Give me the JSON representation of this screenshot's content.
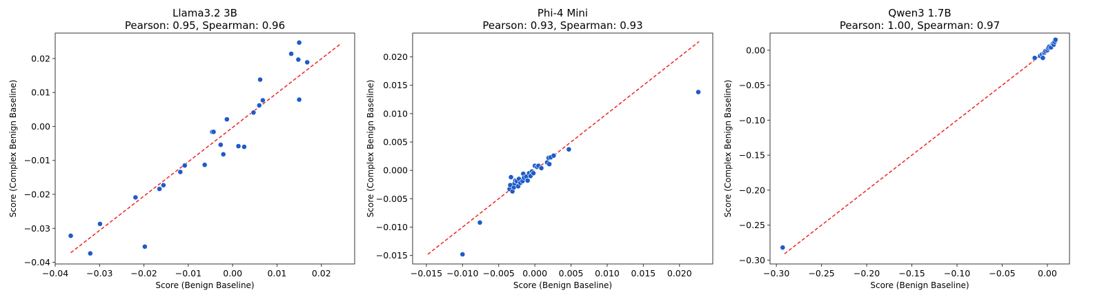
{
  "chart_data": [
    {
      "type": "scatter",
      "title": "Llama3.2 3B",
      "subtitle": "Pearson: 0.95, Spearman: 0.96",
      "xlabel": "Score (Benign Baseline)",
      "ylabel": "Score (Complex Benign Baseline)",
      "xlim": [
        -0.04,
        0.0275
      ],
      "ylim": [
        -0.0405,
        0.0275
      ],
      "xticks": [
        -0.04,
        -0.03,
        -0.02,
        -0.01,
        0.0,
        0.01,
        0.02
      ],
      "xtick_labels": [
        "−0.04",
        "−0.03",
        "−0.02",
        "−0.01",
        "0.00",
        "0.01",
        "0.02"
      ],
      "yticks": [
        -0.04,
        -0.03,
        -0.02,
        -0.01,
        0.0,
        0.01,
        0.02
      ],
      "ytick_labels": [
        "−0.04",
        "−0.03",
        "−0.02",
        "−0.01",
        "0.00",
        "0.01",
        "0.02"
      ],
      "grid": false,
      "point_color": "#1f5bc8",
      "line_color": "#ee2222",
      "reference_line": [
        [
          -0.0365,
          -0.0372
        ],
        [
          0.0245,
          0.0245
        ]
      ],
      "points": [
        [
          -0.0365,
          -0.0322
        ],
        [
          -0.0321,
          -0.0374
        ],
        [
          -0.0299,
          -0.0287
        ],
        [
          -0.0219,
          -0.0209
        ],
        [
          -0.0198,
          -0.0354
        ],
        [
          -0.0165,
          -0.0184
        ],
        [
          -0.0156,
          -0.0173
        ],
        [
          -0.0118,
          -0.0134
        ],
        [
          -0.0108,
          -0.0115
        ],
        [
          -0.0063,
          -0.0113
        ],
        [
          -0.0046,
          -0.0016
        ],
        [
          -0.0043,
          -0.0016
        ],
        [
          -0.0027,
          -0.0054
        ],
        [
          -0.0021,
          -0.0082
        ],
        [
          -0.0013,
          0.0021
        ],
        [
          0.0013,
          -0.0058
        ],
        [
          0.0026,
          -0.006
        ],
        [
          0.0047,
          0.0041
        ],
        [
          0.006,
          0.0062
        ],
        [
          0.0062,
          0.0138
        ],
        [
          0.0068,
          0.0077
        ],
        [
          0.0132,
          0.0214
        ],
        [
          0.0148,
          0.0197
        ],
        [
          0.015,
          0.0247
        ],
        [
          0.015,
          0.0079
        ],
        [
          0.0168,
          0.0189
        ]
      ]
    },
    {
      "type": "scatter",
      "title": "Phi-4 Mini",
      "subtitle": "Pearson: 0.93, Spearman: 0.93",
      "xlabel": "Score (Benign Baseline)",
      "ylabel": "Score (Complex Benign Baseline)",
      "xlim": [
        -0.0169,
        0.0246
      ],
      "ylim": [
        -0.0165,
        0.0242
      ],
      "xticks": [
        -0.015,
        -0.01,
        -0.005,
        0.0,
        0.005,
        0.01,
        0.015,
        0.02
      ],
      "xtick_labels": [
        "−0.015",
        "−0.010",
        "−0.005",
        "0.000",
        "0.005",
        "0.010",
        "0.015",
        "0.020"
      ],
      "yticks": [
        -0.015,
        -0.01,
        -0.005,
        0.0,
        0.005,
        0.01,
        0.015,
        0.02
      ],
      "ytick_labels": [
        "−0.015",
        "−0.010",
        "−0.005",
        "0.000",
        "0.005",
        "0.010",
        "0.015",
        "0.020"
      ],
      "grid": false,
      "point_color": "#1f5bc8",
      "line_color": "#ee2222",
      "reference_line": [
        [
          -0.0148,
          -0.0148
        ],
        [
          0.0227,
          0.0227
        ]
      ],
      "points": [
        [
          -0.01,
          -0.0148
        ],
        [
          -0.0076,
          -0.0092
        ],
        [
          -0.0035,
          -0.0033
        ],
        [
          -0.0034,
          -0.0026
        ],
        [
          -0.0033,
          -0.0012
        ],
        [
          -0.0031,
          -0.0037
        ],
        [
          -0.0029,
          -0.003
        ],
        [
          -0.0028,
          -0.0023
        ],
        [
          -0.0027,
          -0.0018
        ],
        [
          -0.0025,
          -0.0019
        ],
        [
          -0.0023,
          -0.0028
        ],
        [
          -0.0022,
          -0.0015
        ],
        [
          -0.002,
          -0.0022
        ],
        [
          -0.0017,
          -0.0019
        ],
        [
          -0.0016,
          -0.0006
        ],
        [
          -0.0015,
          -0.0013
        ],
        [
          -0.0012,
          -0.0011
        ],
        [
          -0.001,
          -0.0018
        ],
        [
          -0.0008,
          -0.0005
        ],
        [
          -0.0006,
          -0.001
        ],
        [
          -0.0004,
          -0.0002
        ],
        [
          -0.0002,
          -0.0005
        ],
        [
          0.0,
          0.0008
        ],
        [
          0.0003,
          0.0006
        ],
        [
          0.0005,
          0.0008
        ],
        [
          0.0009,
          0.0004
        ],
        [
          0.0017,
          0.0014
        ],
        [
          0.0019,
          0.0022
        ],
        [
          0.002,
          0.0011
        ],
        [
          0.0022,
          0.0023
        ],
        [
          0.0026,
          0.0026
        ],
        [
          0.0047,
          0.0037
        ],
        [
          0.0226,
          0.0138
        ]
      ]
    },
    {
      "type": "scatter",
      "title": "Qwen3 1.7B",
      "subtitle": "Pearson: 1.00, Spearman: 0.97",
      "xlabel": "Score (Benign Baseline)",
      "ylabel": "Score (Complex Benign Baseline)",
      "xlim": [
        -0.307,
        0.0245
      ],
      "ylim": [
        -0.3055,
        0.0245
      ],
      "xticks": [
        -0.3,
        -0.25,
        -0.2,
        -0.15,
        -0.1,
        -0.05,
        0.0
      ],
      "xtick_labels": [
        "−0.30",
        "−0.25",
        "−0.20",
        "−0.15",
        "−0.10",
        "−0.05",
        "0.00"
      ],
      "yticks": [
        -0.3,
        -0.25,
        -0.2,
        -0.15,
        -0.1,
        -0.05,
        0.0
      ],
      "ytick_labels": [
        "−0.30",
        "−0.25",
        "−0.20",
        "−0.15",
        "−0.10",
        "−0.05",
        "0.00"
      ],
      "grid": false,
      "point_color": "#1f5bc8",
      "line_color": "#ee2222",
      "reference_line": [
        [
          -0.291,
          -0.291
        ],
        [
          0.0095,
          0.0095
        ]
      ],
      "points": [
        [
          -0.293,
          -0.282
        ],
        [
          -0.014,
          -0.011
        ],
        [
          -0.008,
          -0.008
        ],
        [
          -0.006,
          -0.006
        ],
        [
          -0.005,
          -0.011
        ],
        [
          -0.004,
          -0.004
        ],
        [
          -0.003,
          -0.003
        ],
        [
          -0.002,
          -0.001
        ],
        [
          0.0,
          0.0
        ],
        [
          0.001,
          0.003
        ],
        [
          0.002,
          0.005
        ],
        [
          0.004,
          0.004
        ],
        [
          0.006,
          0.009
        ],
        [
          0.007,
          0.008
        ],
        [
          0.008,
          0.012
        ],
        [
          0.009,
          0.015
        ]
      ]
    }
  ]
}
